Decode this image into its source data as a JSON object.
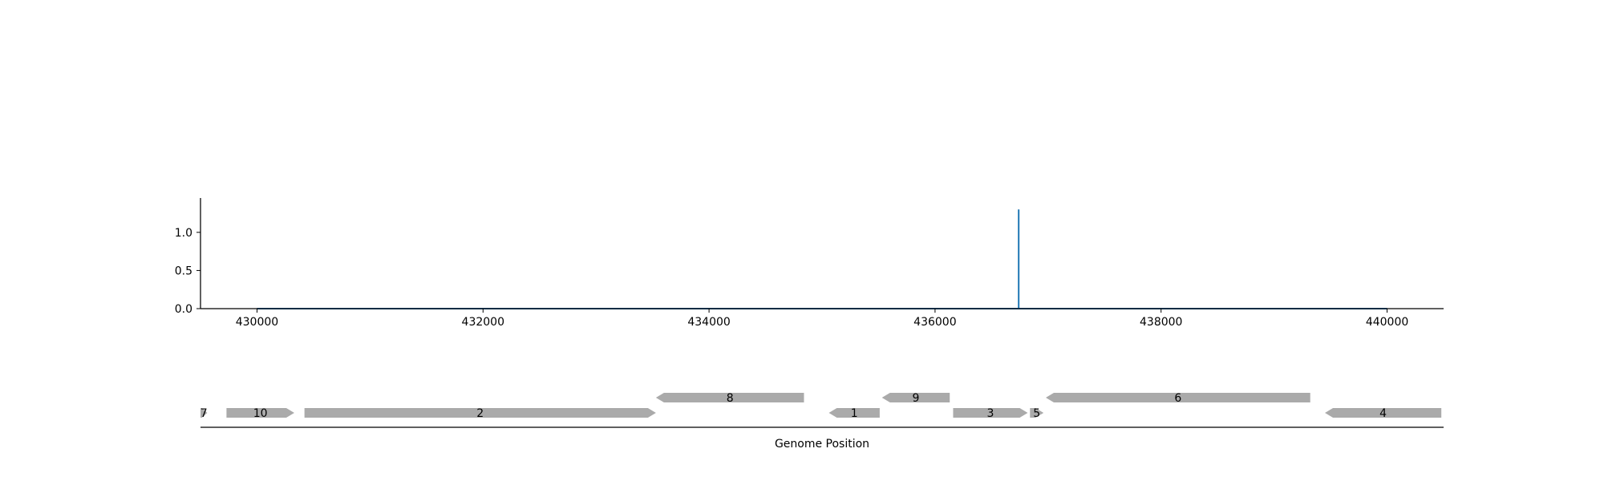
{
  "chart_data": [
    {
      "type": "line",
      "title": "",
      "xlabel": "",
      "ylabel": "",
      "xlim": [
        429500,
        440500
      ],
      "ylim": [
        0,
        1.45
      ],
      "x_ticks": [
        {
          "value": 430000,
          "label": "430000"
        },
        {
          "value": 432000,
          "label": "432000"
        },
        {
          "value": 434000,
          "label": "434000"
        },
        {
          "value": 436000,
          "label": "436000"
        },
        {
          "value": 438000,
          "label": "438000"
        },
        {
          "value": 440000,
          "label": "440000"
        }
      ],
      "y_ticks": [
        {
          "value": 0.0,
          "label": "0.0"
        },
        {
          "value": 0.5,
          "label": "0.5"
        },
        {
          "value": 1.0,
          "label": "1.0"
        }
      ],
      "series": [
        {
          "color": "#1f77b4",
          "x": [
            430000,
            436740,
            436740,
            436740,
            436742,
            440000
          ],
          "y": [
            0,
            0,
            1.3,
            0,
            0,
            0
          ]
        }
      ]
    },
    {
      "type": "gene-track",
      "xlabel": "Genome Position",
      "xlim": [
        429500,
        440500
      ],
      "color": "#aaaaaa",
      "genes": [
        {
          "label": "7",
          "start": 429500,
          "end": 429560,
          "strand": "+",
          "row": 0
        },
        {
          "label": "10",
          "start": 429730,
          "end": 430330,
          "strand": "+",
          "row": 0
        },
        {
          "label": "2",
          "start": 430420,
          "end": 433530,
          "strand": "+",
          "row": 0
        },
        {
          "label": "8",
          "start": 433530,
          "end": 434840,
          "strand": "-",
          "row": 1
        },
        {
          "label": "1",
          "start": 435060,
          "end": 435510,
          "strand": "-",
          "row": 0
        },
        {
          "label": "9",
          "start": 435530,
          "end": 436130,
          "strand": "-",
          "row": 1
        },
        {
          "label": "3",
          "start": 436160,
          "end": 436820,
          "strand": "+",
          "row": 0
        },
        {
          "label": "5",
          "start": 436840,
          "end": 436960,
          "strand": "+",
          "row": 0
        },
        {
          "label": "6",
          "start": 436980,
          "end": 439320,
          "strand": "-",
          "row": 1
        },
        {
          "label": "4",
          "start": 439450,
          "end": 440480,
          "strand": "-",
          "row": 0
        }
      ]
    }
  ]
}
